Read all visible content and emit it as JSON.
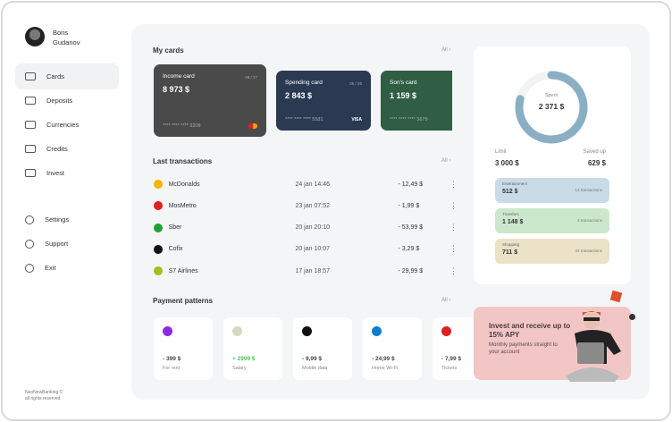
{
  "user": {
    "first": "Boris",
    "last": "Gudanov"
  },
  "nav": [
    {
      "label": "Cards",
      "icon": "card-icon",
      "active": true
    },
    {
      "label": "Deposits",
      "icon": "deposit-icon"
    },
    {
      "label": "Currencies",
      "icon": "currency-icon"
    },
    {
      "label": "Credits",
      "icon": "wallet-icon"
    },
    {
      "label": "Invest",
      "icon": "chart-bars-icon"
    }
  ],
  "nav2": [
    {
      "label": "Settings",
      "icon": "gear-icon"
    },
    {
      "label": "Support",
      "icon": "headphones-icon"
    },
    {
      "label": "Exit",
      "icon": "exit-icon"
    }
  ],
  "footer": {
    "line1": "NeoNewBanking ©",
    "line2": "all rights reserved"
  },
  "cards": {
    "title": "My cards",
    "all": "All ›",
    "items": [
      {
        "name": "Income card",
        "amount": "8 973 $",
        "number": "**** **** **** 3208",
        "exp": "08 / 27",
        "color": "#4a4a4a",
        "brand": "mastercard"
      },
      {
        "name": "Spending card",
        "amount": "2 843 $",
        "number": "**** **** **** 5581",
        "exp": "06 / 26",
        "color": "#2b3a52",
        "brand": "VISA"
      },
      {
        "name": "Son's card",
        "amount": "1 159 $",
        "number": "**** **** **** 3679",
        "color": "#2f5e45"
      }
    ]
  },
  "transactions": {
    "title": "Last transactions",
    "all": "All ›",
    "items": [
      {
        "name": "McDonalds",
        "date": "24 jan 14:46",
        "amount": "- 12,49 $",
        "color": "#f5b400",
        "mark": "M"
      },
      {
        "name": "MosMetro",
        "date": "23 jan 07:52",
        "amount": "- 1,99 $",
        "color": "#e02020",
        "mark": "M"
      },
      {
        "name": "Sber",
        "date": "20 jan 20:10",
        "amount": "- 53,99 $",
        "color": "#21a038",
        "mark": "S"
      },
      {
        "name": "Cofix",
        "date": "20 jan 10:07",
        "amount": "- 3,29 $",
        "color": "#111",
        "mark": "cofix"
      },
      {
        "name": "S7 Airlines",
        "date": "17 jan 18:57",
        "amount": "- 29,99 $",
        "color": "#9bc21f",
        "mark": "S7"
      }
    ]
  },
  "patterns": {
    "title": "Payment patterns",
    "all": "All ›",
    "items": [
      {
        "amount": "- 399 $",
        "label": "For rent",
        "color": "#8a2be2"
      },
      {
        "amount": "+ 2999 $",
        "label": "Salary",
        "color": "#d8d8c0",
        "positive": true
      },
      {
        "amount": "- 9,99 $",
        "label": "Mobile data",
        "color": "#111"
      },
      {
        "amount": "- 24,99 $",
        "label": "Home Wi-Fi",
        "color": "#0a7fd0"
      },
      {
        "amount": "- 7,99 $",
        "label": "Tickets",
        "color": "#e02020"
      }
    ]
  },
  "spent": {
    "label": "Spent",
    "value": "2 371 $",
    "fraction": 0.79,
    "color": "#8aafc4",
    "limit_label": "Limit",
    "limit": "3 000 $",
    "saved_label": "Saved up",
    "saved": "629 $"
  },
  "categories": [
    {
      "name": "Entertainment",
      "value": "512 $",
      "count": "13 transactions",
      "color": "#c9dbe6"
    },
    {
      "name": "Transfers",
      "value": "1 148 $",
      "count": "3 transactions",
      "color": "#cce8cc"
    },
    {
      "name": "Shopping",
      "value": "711 $",
      "count": "24 transactions",
      "color": "#ebe2c8"
    }
  ],
  "promo": {
    "title": "Invest and receive up to 15% APY",
    "text": "Monthly payments straight to your account"
  }
}
